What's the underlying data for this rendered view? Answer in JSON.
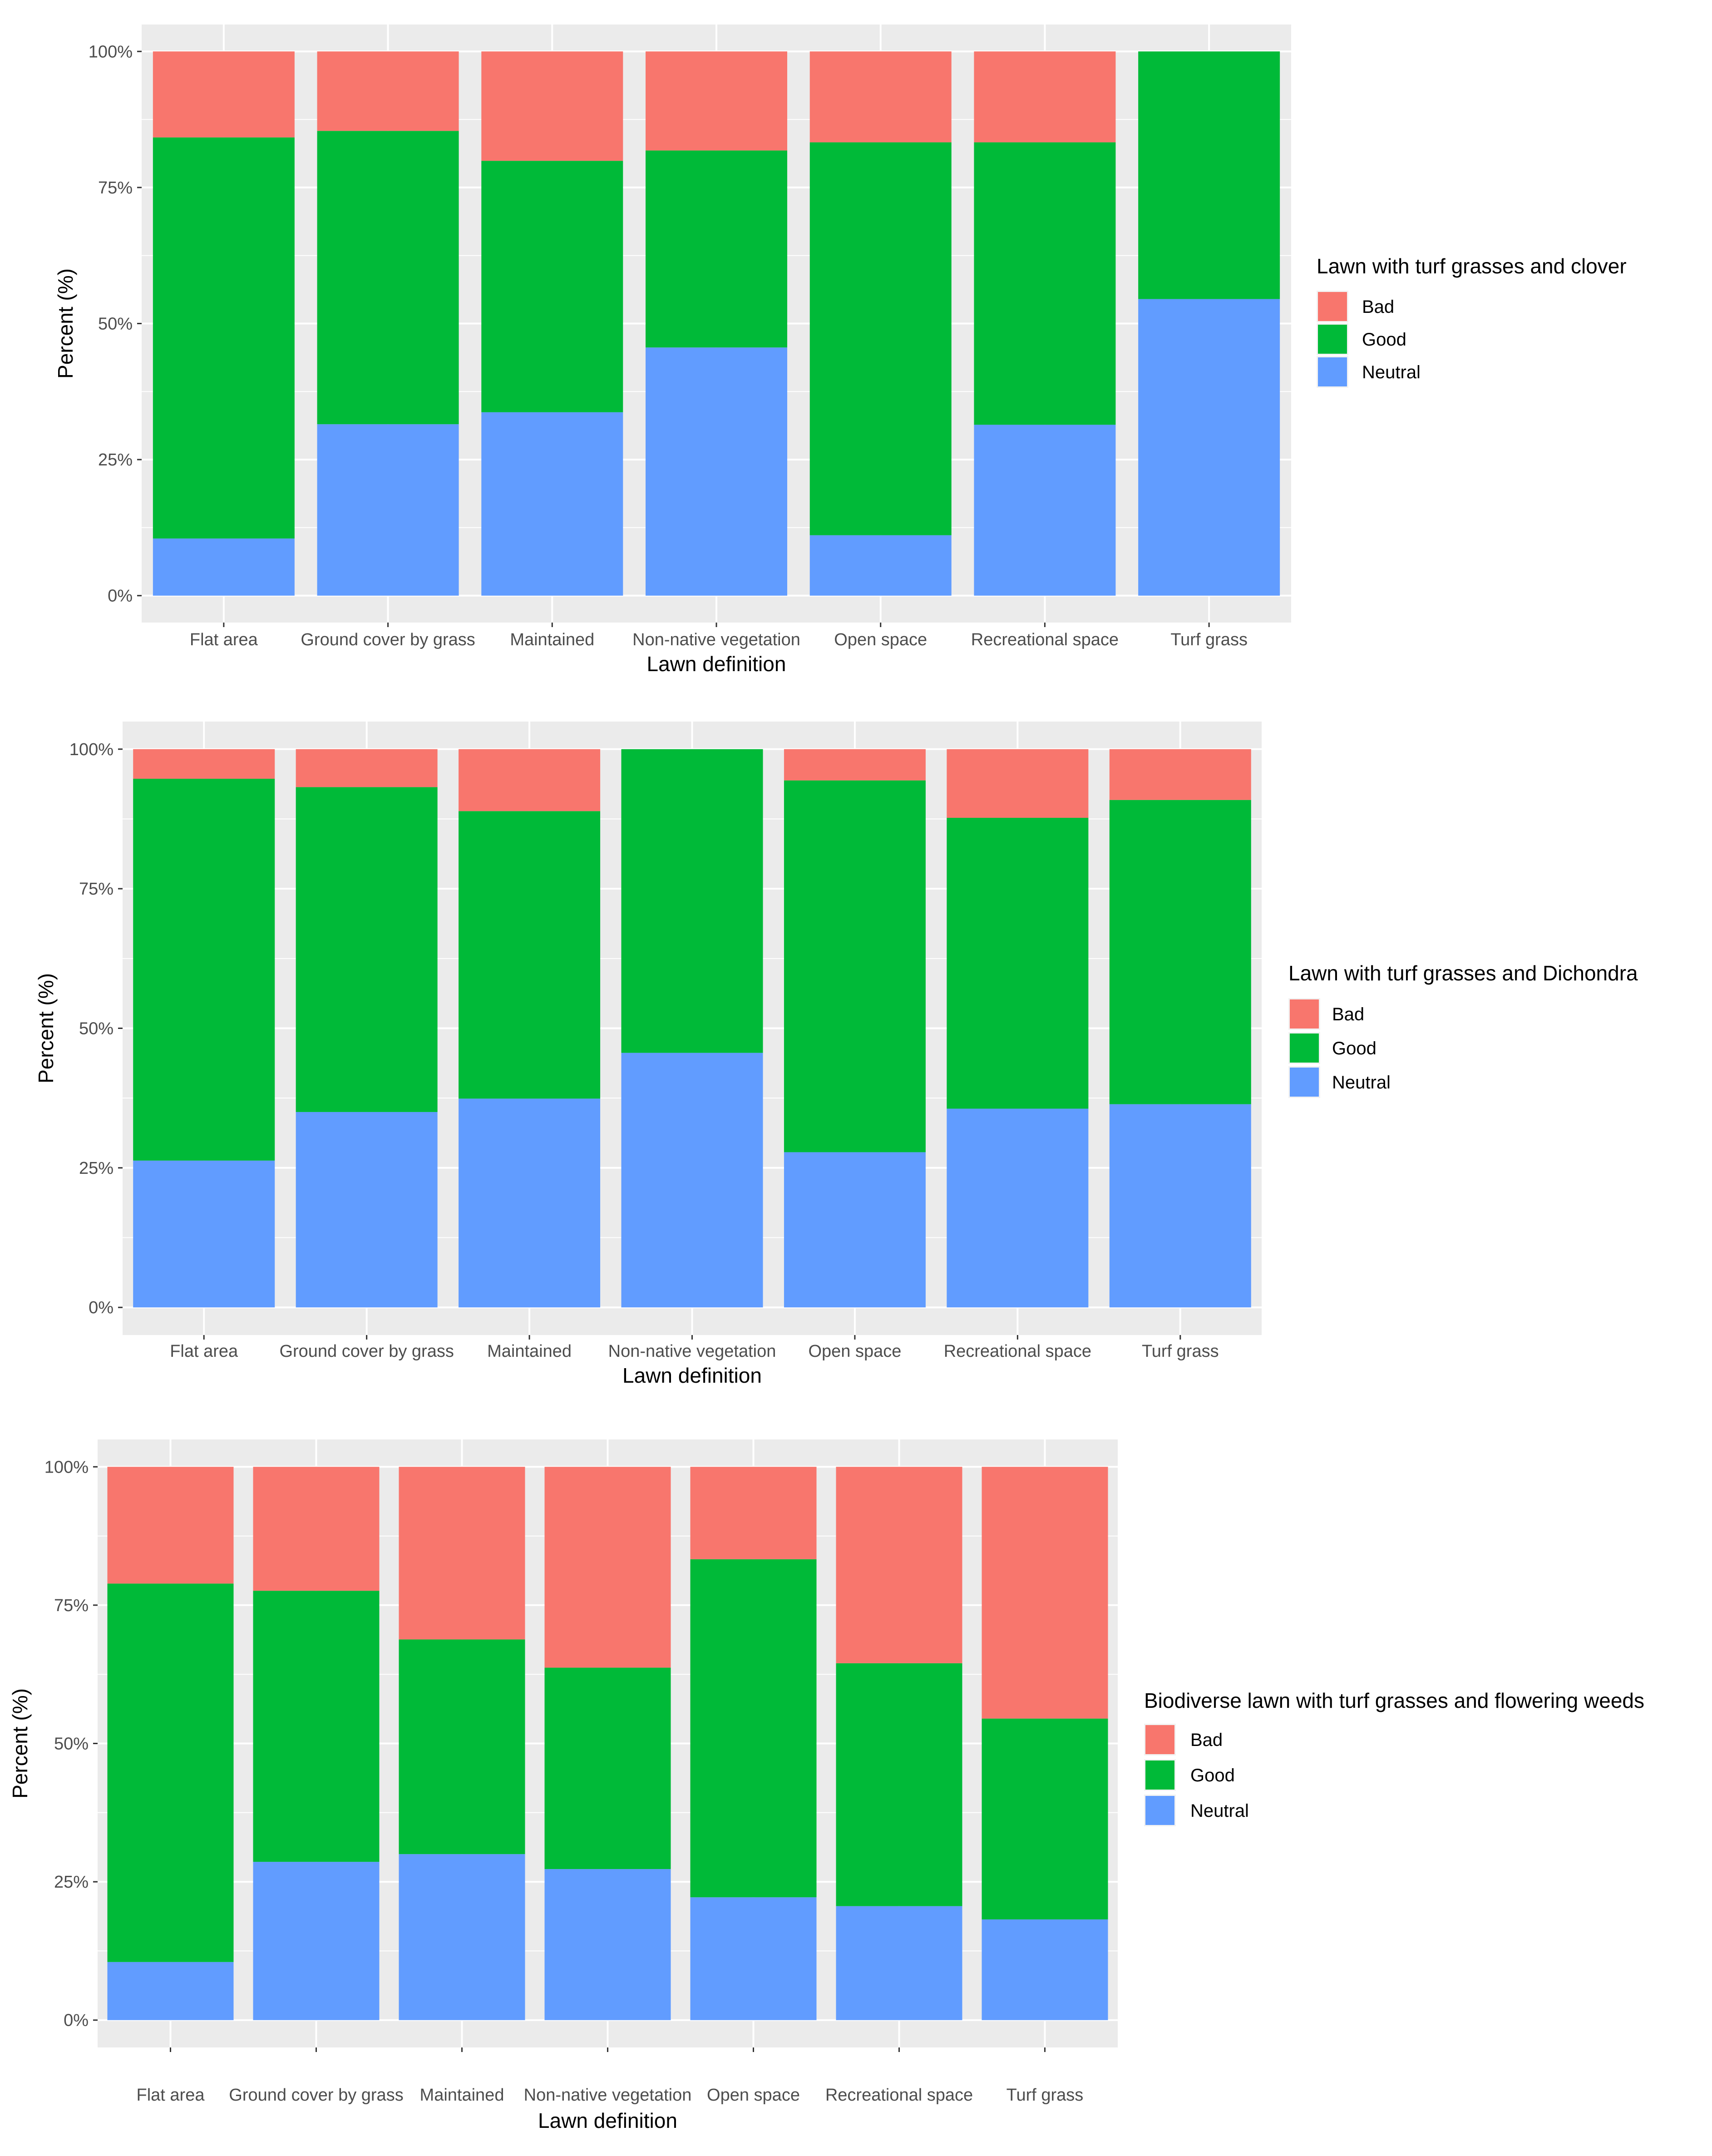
{
  "chart_data": [
    {
      "type": "bar",
      "stacked": true,
      "percent": true,
      "xlabel": "Lawn definition",
      "ylabel": "Percent (%)",
      "ylim": [
        0,
        100
      ],
      "yticks": [
        "0%",
        "25%",
        "50%",
        "75%",
        "100%"
      ],
      "legend_title": "Lawn with turf grasses and clover",
      "legend_position": "right",
      "categories": [
        "Flat area",
        "Ground cover by grass",
        "Maintained",
        "Non-native vegetation",
        "Open space",
        "Recreational space",
        "Turf grass"
      ],
      "series": [
        {
          "name": "Neutral",
          "color": "#619CFF",
          "values": [
            10.5,
            31.5,
            33.7,
            45.6,
            11.1,
            31.4,
            54.5
          ]
        },
        {
          "name": "Good",
          "color": "#00BA38",
          "values": [
            73.7,
            53.9,
            46.2,
            36.2,
            72.2,
            51.9,
            45.5
          ]
        },
        {
          "name": "Bad",
          "color": "#F8766D",
          "values": [
            15.8,
            14.6,
            20.1,
            18.2,
            16.7,
            16.7,
            0.0
          ]
        }
      ],
      "legend_order": [
        "Bad",
        "Good",
        "Neutral"
      ]
    },
    {
      "type": "bar",
      "stacked": true,
      "percent": true,
      "xlabel": "Lawn definition",
      "ylabel": "Percent (%)",
      "ylim": [
        0,
        100
      ],
      "yticks": [
        "0%",
        "25%",
        "50%",
        "75%",
        "100%"
      ],
      "legend_title": "Lawn with turf grasses and Dichondra",
      "legend_position": "right",
      "categories": [
        "Flat area",
        "Ground cover by grass",
        "Maintained",
        "Non-native vegetation",
        "Open space",
        "Recreational space",
        "Turf grass"
      ],
      "series": [
        {
          "name": "Neutral",
          "color": "#619CFF",
          "values": [
            26.3,
            35.0,
            37.4,
            45.6,
            27.8,
            35.6,
            36.4
          ]
        },
        {
          "name": "Good",
          "color": "#00BA38",
          "values": [
            68.4,
            58.2,
            51.5,
            54.4,
            66.6,
            52.1,
            54.5
          ]
        },
        {
          "name": "Bad",
          "color": "#F8766D",
          "values": [
            5.3,
            6.8,
            11.1,
            0.0,
            5.6,
            12.3,
            9.1
          ]
        }
      ],
      "legend_order": [
        "Bad",
        "Good",
        "Neutral"
      ]
    },
    {
      "type": "bar",
      "stacked": true,
      "percent": true,
      "xlabel": "Lawn definition",
      "ylabel": "Percent (%)",
      "ylim": [
        0,
        100
      ],
      "yticks": [
        "0%",
        "25%",
        "50%",
        "75%",
        "100%"
      ],
      "legend_title": "Biodiverse lawn with turf grasses and flowering weeds",
      "legend_position": "right",
      "categories": [
        "Flat area",
        "Ground cover by grass",
        "Maintained",
        "Non-native vegetation",
        "Open space",
        "Recreational space",
        "Turf grass"
      ],
      "series": [
        {
          "name": "Neutral",
          "color": "#619CFF",
          "values": [
            10.5,
            28.6,
            30.0,
            27.3,
            22.2,
            20.6,
            18.2
          ]
        },
        {
          "name": "Good",
          "color": "#00BA38",
          "values": [
            68.4,
            49.0,
            38.8,
            36.4,
            61.1,
            43.9,
            36.3
          ]
        },
        {
          "name": "Bad",
          "color": "#F8766D",
          "values": [
            21.1,
            22.4,
            31.2,
            36.3,
            16.7,
            35.5,
            45.5
          ]
        }
      ],
      "legend_order": [
        "Bad",
        "Good",
        "Neutral"
      ]
    }
  ]
}
